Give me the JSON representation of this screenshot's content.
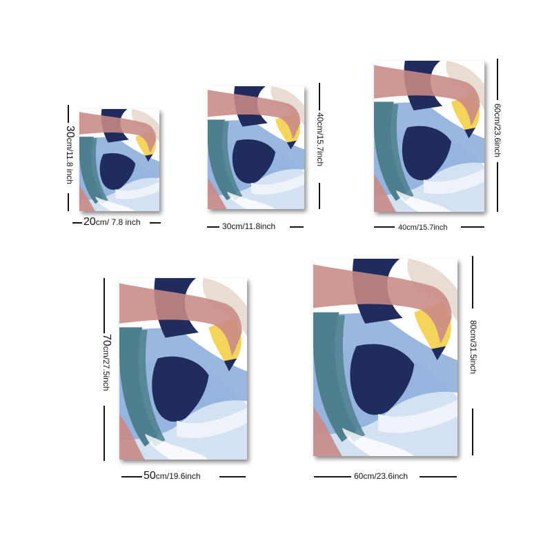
{
  "sizes": [
    {
      "width_big": "20",
      "width_rest": "cm/ 7.8 inch",
      "height_big": "30",
      "height_rest": "cm/11.8 inch"
    },
    {
      "width_big": "",
      "width_rest": "30cm/11.8inch",
      "height_big": "",
      "height_rest": "40cm/15.7inch"
    },
    {
      "width_big": "",
      "width_rest": "40cm/15.7inch",
      "height_big": "",
      "height_rest": "60cm/23.6inch"
    },
    {
      "width_big": "50",
      "width_rest": "cm/19.6inch",
      "height_big": "70",
      "height_rest": "cm/27.5inch"
    },
    {
      "width_big": "",
      "width_rest": "60cm/23.6inch",
      "height_big": "",
      "height_rest": "80cm/31.5inch"
    }
  ],
  "colors": {
    "navy": "#1f2c5c",
    "teal": "#4e7f8e",
    "blue": "#8fb0dc",
    "pale_blue": "#d4e1f2",
    "pink": "#c98a86",
    "beige": "#e9ddd3",
    "yellow": "#f5d45c"
  }
}
